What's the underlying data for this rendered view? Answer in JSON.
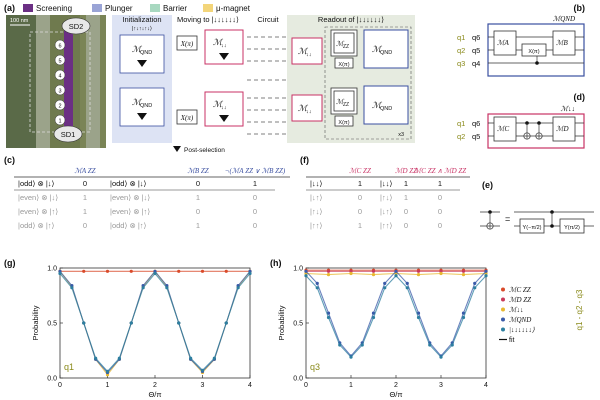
{
  "panels": {
    "a": "(a)",
    "b": "(b)",
    "c": "(c)",
    "d": "(d)",
    "e": "(e)",
    "f": "(f)",
    "g": "(g)",
    "h": "(h)"
  },
  "legend": [
    {
      "label": "Screening",
      "color": "#6b2f84"
    },
    {
      "label": "Plunger",
      "color": "#9aa4d6"
    },
    {
      "label": "Barrier",
      "color": "#a8d8c0"
    },
    {
      "label": "μ-magnet",
      "color": "#f3d57a"
    }
  ],
  "device": {
    "scale": "100 nm",
    "sd2": "SD2",
    "sd1": "SD1",
    "dots": [
      "6",
      "5",
      "4",
      "3",
      "2",
      "1"
    ]
  },
  "sequence": {
    "initialization": "Initialization",
    "init_state": "|↑↓↑↓↑↓⟩",
    "moving": "Moving to |↓↓↓↓↓↓⟩",
    "circuit": "Circuit",
    "readout": "Readout of |↓↓↓↓↓↓⟩",
    "post_selection": "Post-selection",
    "repeat": "x3",
    "m_qnd": "ℳ",
    "m_qnd_sub": "QND",
    "m_down": "ℳ",
    "m_down_sub": "↓↓",
    "m_zz": "ℳ",
    "m_zz_sub": "ZZ",
    "x_pi": "X(π)"
  },
  "panel_b": {
    "title": "ℳQND",
    "qubit_colors": [
      "#8a8a1a",
      "#8a8a1a",
      "#8a8a1a"
    ],
    "outer_labels": [
      "q1",
      "q2",
      "q3"
    ],
    "inner_labels": [
      "q6",
      "q5",
      "q4"
    ],
    "gate_a": "ℳA",
    "gate_b": "ℳB",
    "gate_zz": "ZZ",
    "gate_x": "X(π)"
  },
  "panel_d": {
    "title": "ℳ↓↓",
    "outer_labels": [
      "q1",
      "q2"
    ],
    "inner_labels": [
      "q6",
      "q5"
    ],
    "gate_c": "ℳC",
    "gate_d": "ℳD",
    "gate_zz": "ZZ"
  },
  "panel_e": {
    "eq": "=",
    "gate1": "Y(−π/2)",
    "gate2": "Y(π/2)"
  },
  "table_c": {
    "headers": [
      "ℳA ZZ",
      "ℳB ZZ",
      "¬(ℳA ZZ ∨ ℳB ZZ)"
    ],
    "rows": [
      {
        "s1": "|odd⟩ ⊗ |↓⟩",
        "a": "0",
        "s2": "|odd⟩ ⊗ |↓⟩",
        "b": "0",
        "r": "1",
        "dim": false
      },
      {
        "s1": "|even⟩ ⊗ |↓⟩",
        "a": "1",
        "s2": "|even⟩ ⊗ |↓⟩",
        "b": "1",
        "r": "0",
        "dim": true
      },
      {
        "s1": "|even⟩ ⊗ |↑⟩",
        "a": "1",
        "s2": "|even⟩ ⊗ |↑⟩",
        "b": "0",
        "r": "0",
        "dim": true
      },
      {
        "s1": "|odd⟩ ⊗ |↑⟩",
        "a": "0",
        "s2": "|odd⟩ ⊗ |↑⟩",
        "b": "1",
        "r": "0",
        "dim": true
      }
    ]
  },
  "table_f": {
    "headers": [
      "ℳC ZZ",
      "ℳD ZZ",
      "ℳC ZZ ∧ ℳD ZZ"
    ],
    "rows": [
      {
        "s1": "|↓↓⟩",
        "c": "1",
        "s2": "|↓↓⟩",
        "d": "1",
        "r": "1",
        "dim": false
      },
      {
        "s1": "|↓↑⟩",
        "c": "0",
        "s2": "|↑↓⟩",
        "d": "1",
        "r": "0",
        "dim": true
      },
      {
        "s1": "|↑↓⟩",
        "c": "0",
        "s2": "|↓↑⟩",
        "d": "0",
        "r": "0",
        "dim": true
      },
      {
        "s1": "|↑↑⟩",
        "c": "1",
        "s2": "|↑↑⟩",
        "d": "0",
        "r": "0",
        "dim": true
      }
    ]
  },
  "plot_legend": {
    "entries": [
      {
        "label": "ℳC ZZ",
        "color": "#d94a2a"
      },
      {
        "label": "ℳD ZZ",
        "color": "#c93a5a"
      },
      {
        "label": "ℳ↓↓",
        "color": "#e8b830"
      },
      {
        "label": "ℳQND",
        "color": "#3a5aa8"
      },
      {
        "label": "|↓↓↓↓↓↓⟩",
        "color": "#2d7fa0"
      }
    ],
    "fit": "fit",
    "side_label": "q1 - q2 - q3"
  },
  "chart_data": [
    {
      "type": "line",
      "qubit_label": "q1",
      "xlabel": "Θ/π",
      "ylabel": "Probability",
      "xlim": [
        0,
        4
      ],
      "ylim": [
        0,
        1
      ],
      "xticks": [
        "0",
        "1",
        "2",
        "3",
        "4"
      ],
      "yticks": [
        "0.0",
        "0.5",
        "1.0"
      ],
      "series": [
        {
          "name": "ℳC ZZ",
          "color": "#d94a2a",
          "x": [
            0,
            0.5,
            1,
            1.5,
            2,
            2.5,
            3,
            3.5,
            4
          ],
          "y": [
            0.97,
            0.97,
            0.97,
            0.97,
            0.97,
            0.97,
            0.97,
            0.97,
            0.97
          ]
        },
        {
          "name": "ℳ↓↓",
          "color": "#e8b830",
          "x": [
            0,
            0.25,
            0.5,
            0.75,
            1,
            1.25,
            1.5,
            1.75,
            2,
            2.25,
            2.5,
            2.75,
            3,
            3.25,
            3.5,
            3.75,
            4
          ],
          "y": [
            0.97,
            0.83,
            0.5,
            0.17,
            0.03,
            0.17,
            0.5,
            0.83,
            0.97,
            0.83,
            0.5,
            0.17,
            0.05,
            0.17,
            0.5,
            0.83,
            0.97
          ]
        },
        {
          "name": "ℳQND",
          "color": "#3a5aa8",
          "x": [
            0,
            0.25,
            0.5,
            0.75,
            1,
            1.25,
            1.5,
            1.75,
            2,
            2.25,
            2.5,
            2.75,
            3,
            3.25,
            3.5,
            3.75,
            4
          ],
          "y": [
            0.97,
            0.84,
            0.5,
            0.17,
            0.05,
            0.17,
            0.5,
            0.84,
            0.97,
            0.84,
            0.5,
            0.17,
            0.06,
            0.17,
            0.5,
            0.84,
            0.97
          ]
        },
        {
          "name": "|↓↓↓↓↓↓⟩",
          "color": "#2d7fa0",
          "x": [
            0,
            0.25,
            0.5,
            0.75,
            1,
            1.25,
            1.5,
            1.75,
            2,
            2.25,
            2.5,
            2.75,
            3,
            3.25,
            3.5,
            3.75,
            4
          ],
          "y": [
            0.95,
            0.82,
            0.5,
            0.18,
            0.06,
            0.18,
            0.5,
            0.82,
            0.95,
            0.82,
            0.5,
            0.18,
            0.07,
            0.18,
            0.5,
            0.82,
            0.95
          ]
        }
      ]
    },
    {
      "type": "line",
      "qubit_label": "q3",
      "xlabel": "Θ/π",
      "ylabel": "Probability",
      "xlim": [
        0,
        4
      ],
      "ylim": [
        0,
        1
      ],
      "xticks": [
        "0",
        "1",
        "2",
        "3",
        "4"
      ],
      "yticks": [
        "0.0",
        "0.5",
        "1.0"
      ],
      "series": [
        {
          "name": "ℳC ZZ",
          "color": "#d94a2a",
          "x": [
            0,
            0.5,
            1,
            1.5,
            2,
            2.5,
            3,
            3.5,
            4
          ],
          "y": [
            0.98,
            0.98,
            0.98,
            0.98,
            0.98,
            0.98,
            0.98,
            0.98,
            0.98
          ]
        },
        {
          "name": "ℳD ZZ",
          "color": "#c93a5a",
          "x": [
            0,
            0.5,
            1,
            1.5,
            2,
            2.5,
            3,
            3.5,
            4
          ],
          "y": [
            0.97,
            0.97,
            0.97,
            0.97,
            0.97,
            0.97,
            0.97,
            0.97,
            0.97
          ]
        },
        {
          "name": "ℳ↓↓",
          "color": "#e8b830",
          "x": [
            0,
            0.5,
            1,
            1.5,
            2,
            2.5,
            3,
            3.5,
            4
          ],
          "y": [
            0.95,
            0.94,
            0.95,
            0.94,
            0.95,
            0.94,
            0.95,
            0.94,
            0.95
          ]
        },
        {
          "name": "ℳQND",
          "color": "#3a5aa8",
          "x": [
            0,
            0.25,
            0.5,
            0.75,
            1,
            1.25,
            1.5,
            1.75,
            2,
            2.25,
            2.5,
            2.75,
            3,
            3.25,
            3.5,
            3.75,
            4
          ],
          "y": [
            0.97,
            0.86,
            0.59,
            0.32,
            0.2,
            0.32,
            0.59,
            0.86,
            0.97,
            0.86,
            0.59,
            0.32,
            0.2,
            0.32,
            0.59,
            0.86,
            0.97
          ]
        },
        {
          "name": "|↓↓↓↓↓↓⟩",
          "color": "#2d7fa0",
          "x": [
            0,
            0.25,
            0.5,
            0.75,
            1,
            1.25,
            1.5,
            1.75,
            2,
            2.25,
            2.5,
            2.75,
            3,
            3.25,
            3.5,
            3.75,
            4
          ],
          "y": [
            0.93,
            0.82,
            0.55,
            0.3,
            0.19,
            0.3,
            0.55,
            0.82,
            0.93,
            0.82,
            0.55,
            0.3,
            0.19,
            0.3,
            0.55,
            0.82,
            0.93
          ]
        }
      ]
    }
  ]
}
